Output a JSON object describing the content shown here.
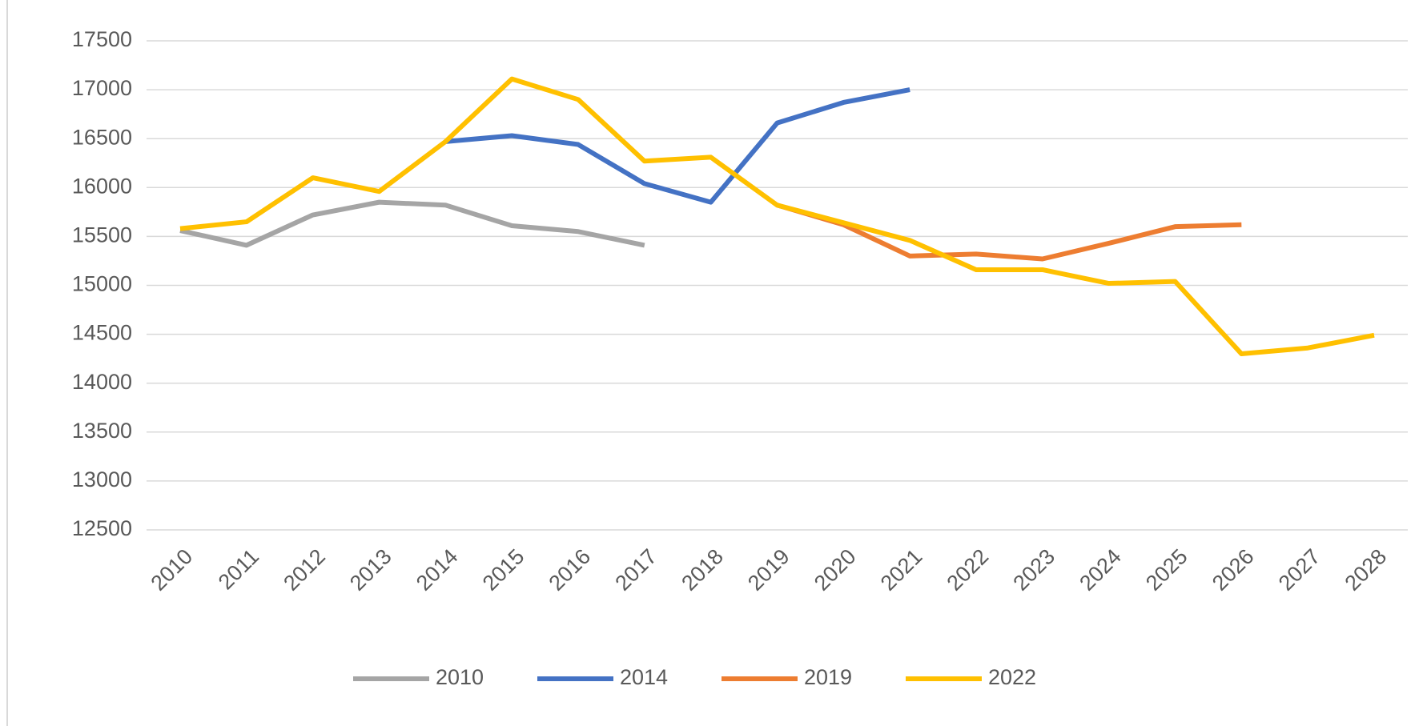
{
  "chart_data": {
    "type": "line",
    "categories": [
      "2010",
      "2011",
      "2012",
      "2013",
      "2014",
      "2015",
      "2016",
      "2017",
      "2018",
      "2019",
      "2020",
      "2021",
      "2022",
      "2023",
      "2024",
      "2025",
      "2026",
      "2027",
      "2028"
    ],
    "series": [
      {
        "name": "2010",
        "color": "#a5a5a5",
        "values": [
          15560,
          15410,
          15720,
          15850,
          15820,
          15610,
          15550,
          15410,
          null,
          null,
          null,
          null,
          null,
          null,
          null,
          null,
          null,
          null,
          null
        ]
      },
      {
        "name": "2014",
        "color": "#4472c4",
        "values": [
          null,
          null,
          null,
          null,
          16470,
          16530,
          16440,
          16040,
          15850,
          16660,
          16870,
          17000,
          null,
          null,
          null,
          null,
          null,
          null,
          null
        ]
      },
      {
        "name": "2019",
        "color": "#ed7d31",
        "values": [
          null,
          null,
          null,
          null,
          null,
          null,
          null,
          null,
          null,
          15820,
          15620,
          15300,
          15320,
          15270,
          15430,
          15600,
          15620,
          null,
          null
        ]
      },
      {
        "name": "2022",
        "color": "#ffc000",
        "values": [
          15580,
          15650,
          16100,
          15960,
          16470,
          17110,
          16900,
          16270,
          16310,
          15820,
          15640,
          15460,
          15160,
          15160,
          15020,
          15040,
          14300,
          14360,
          14490
        ]
      }
    ],
    "ylim": [
      12500,
      17500
    ],
    "yticks": [
      12500,
      13000,
      13500,
      14000,
      14500,
      15000,
      15500,
      16000,
      16500,
      17000,
      17500
    ],
    "grid": true,
    "legend": "bottom"
  }
}
